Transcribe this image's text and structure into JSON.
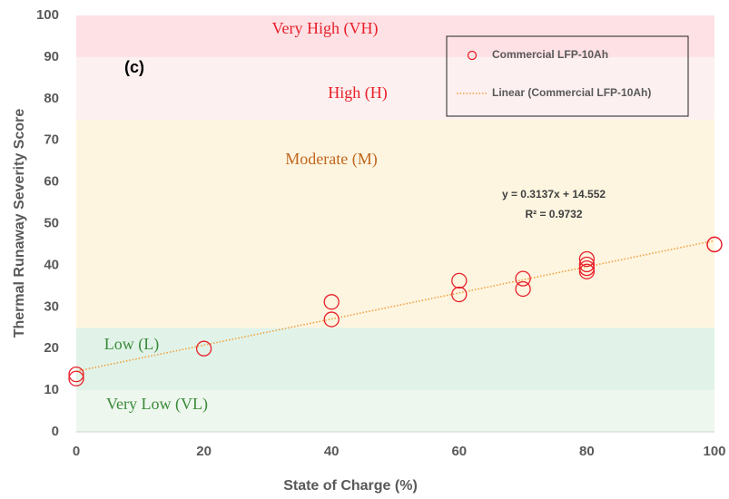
{
  "chart_data": {
    "type": "scatter",
    "xlabel": "State of Charge (%)",
    "ylabel": "Thermal Runaway Severity Score",
    "panel_label": "(c)",
    "xlim": [
      0,
      100
    ],
    "xticks": [
      0,
      20,
      40,
      60,
      80,
      100
    ],
    "ylim": [
      0,
      100
    ],
    "yticks": [
      0,
      10,
      20,
      30,
      40,
      50,
      60,
      70,
      80,
      90,
      100
    ],
    "bands": [
      {
        "label": "Very Low (VL)",
        "from": 0,
        "to": 10,
        "color": "#eef7ee",
        "text_color": "#3a8a3a"
      },
      {
        "label": "Low (L)",
        "from": 10,
        "to": 25,
        "color": "#e1f3e8",
        "text_color": "#3a8a3a"
      },
      {
        "label": "Moderate (M)",
        "from": 25,
        "to": 75,
        "color": "#fdf5e0",
        "text_color": "#c0661e"
      },
      {
        "label": "High (H)",
        "from": 75,
        "to": 90,
        "color": "#fdf0f0",
        "text_color": "#e8202a"
      },
      {
        "label": "Very High (VH)",
        "from": 90,
        "to": 100,
        "color": "#fde1e5",
        "text_color": "#e8202a"
      }
    ],
    "series": [
      {
        "name": "Commercial LFP-10Ah",
        "color": "#e8202a",
        "x": [
          0,
          0,
          20,
          40,
          40,
          60,
          60,
          70,
          70,
          80,
          80,
          80,
          80,
          100,
          100
        ],
        "values": [
          12.8,
          13.8,
          20,
          27,
          31.2,
          33,
          36.3,
          34.3,
          36.8,
          38.5,
          39.3,
          40.2,
          41.5,
          45,
          45
        ]
      }
    ],
    "trendline": {
      "name": "Linear (Commercial LFP-10Ah)",
      "color": "#f0a040",
      "slope": 0.3137,
      "intercept": 14.552,
      "equation": "y = 0.3137x + 14.552",
      "r2": "R² = 0.9732"
    }
  }
}
